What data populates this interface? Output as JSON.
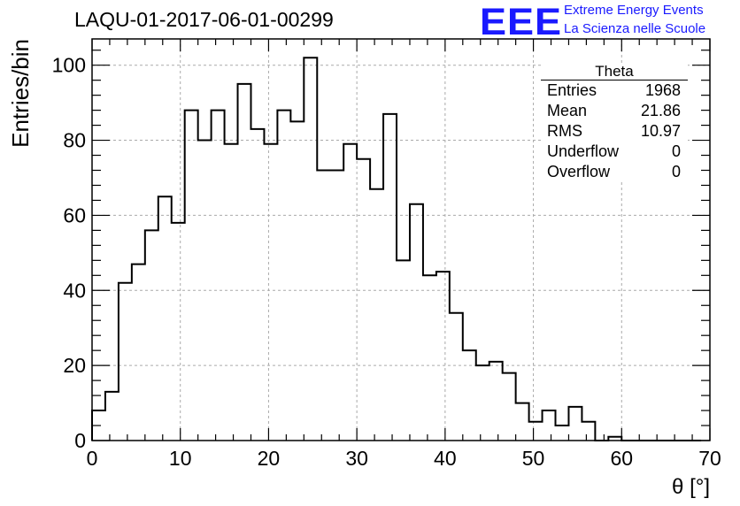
{
  "header": {
    "run_id": "LAQU-01-2017-06-01-00299",
    "logo_text": "EEE",
    "logo_line1": "Extreme Energy Events",
    "logo_line2": "La Scienza nelle Scuole"
  },
  "stats_box": {
    "title": "Theta",
    "rows": [
      {
        "label": "Entries",
        "value": "1968"
      },
      {
        "label": "Mean",
        "value": "21.86"
      },
      {
        "label": "RMS",
        "value": "10.97"
      },
      {
        "label": "Underflow",
        "value": "0"
      },
      {
        "label": "Overflow",
        "value": "0"
      }
    ]
  },
  "chart_data": {
    "type": "bar",
    "style": "step-histogram",
    "title": "LAQU-01-2017-06-01-00299",
    "xlabel": "θ [°]",
    "ylabel": "Entries/bin",
    "xlim": [
      0,
      70
    ],
    "ylim": [
      0,
      107
    ],
    "bin_width": 1.5,
    "bin_edges_start": 0,
    "x_ticks": [
      0,
      10,
      20,
      30,
      40,
      50,
      60,
      70
    ],
    "y_ticks": [
      0,
      20,
      40,
      60,
      80,
      100
    ],
    "grid": true,
    "legend": "none",
    "values": [
      8,
      13,
      42,
      47,
      56,
      65,
      58,
      88,
      80,
      88,
      79,
      95,
      83,
      79,
      88,
      85,
      102,
      72,
      72,
      79,
      75,
      67,
      87,
      48,
      63,
      44,
      45,
      34,
      24,
      20,
      21,
      18,
      10,
      5,
      8,
      4,
      9,
      5,
      0,
      1,
      0,
      0,
      0,
      0,
      0,
      0
    ]
  }
}
